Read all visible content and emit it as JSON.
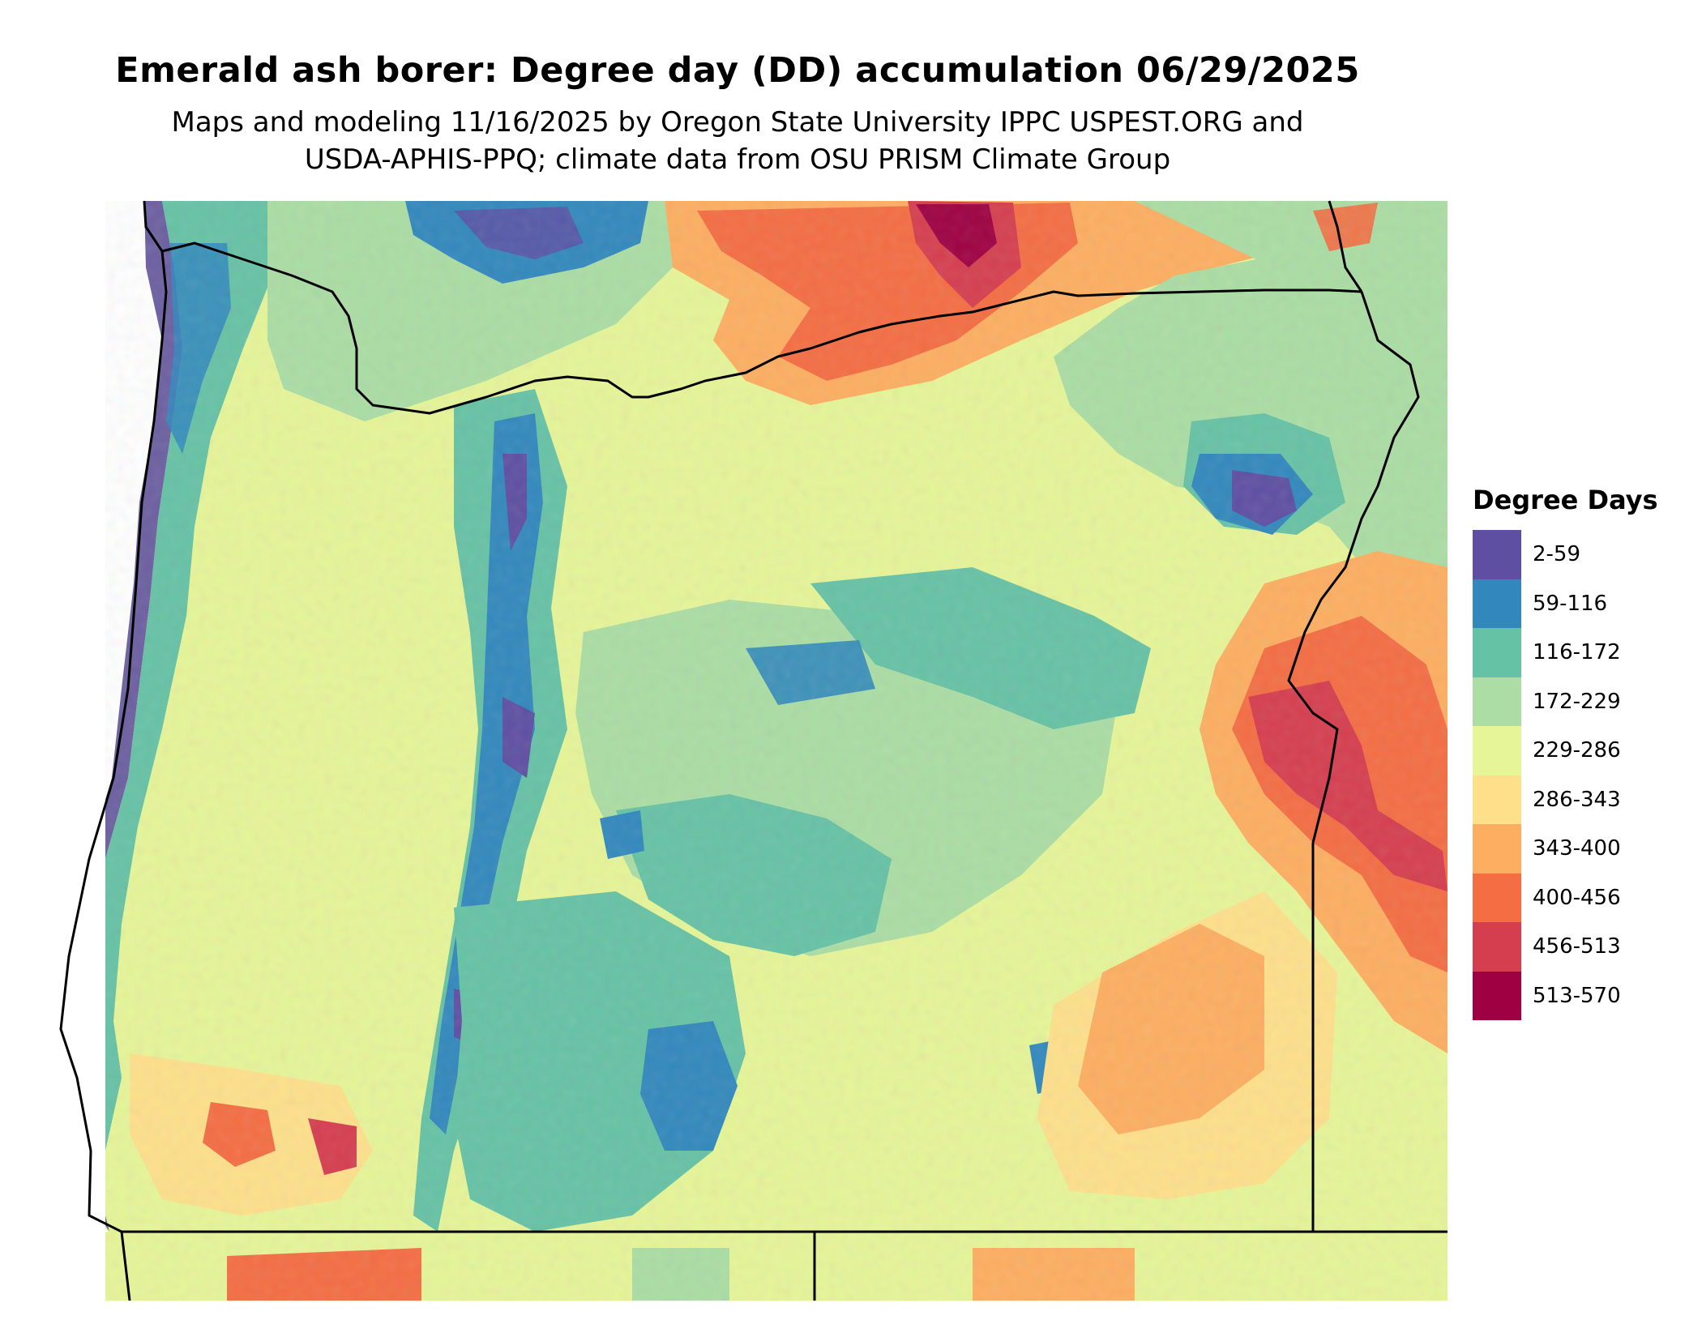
{
  "title": "Emerald ash borer: Degree day (DD) accumulation 06/29/2025",
  "subtitle_line1": "Maps and modeling 11/16/2025 by Oregon State University IPPC USPEST.ORG and",
  "subtitle_line2": "USDA-APHIS-PPQ; climate data from OSU PRISM Climate Group",
  "legend": {
    "title": "Degree Days",
    "items": [
      {
        "label": "2-59",
        "color": "#5e4fa2"
      },
      {
        "label": "59-116",
        "color": "#3288bd"
      },
      {
        "label": "116-172",
        "color": "#66c2a5"
      },
      {
        "label": "172-229",
        "color": "#abdda4"
      },
      {
        "label": "229-286",
        "color": "#e6f598"
      },
      {
        "label": "286-343",
        "color": "#fee08b"
      },
      {
        "label": "343-400",
        "color": "#fdae61"
      },
      {
        "label": "400-456",
        "color": "#f46d43"
      },
      {
        "label": "456-513",
        "color": "#d53e4f"
      },
      {
        "label": "513-570",
        "color": "#9e0142"
      }
    ]
  },
  "map": {
    "region": "Oregon",
    "boundary_color": "#000000"
  }
}
